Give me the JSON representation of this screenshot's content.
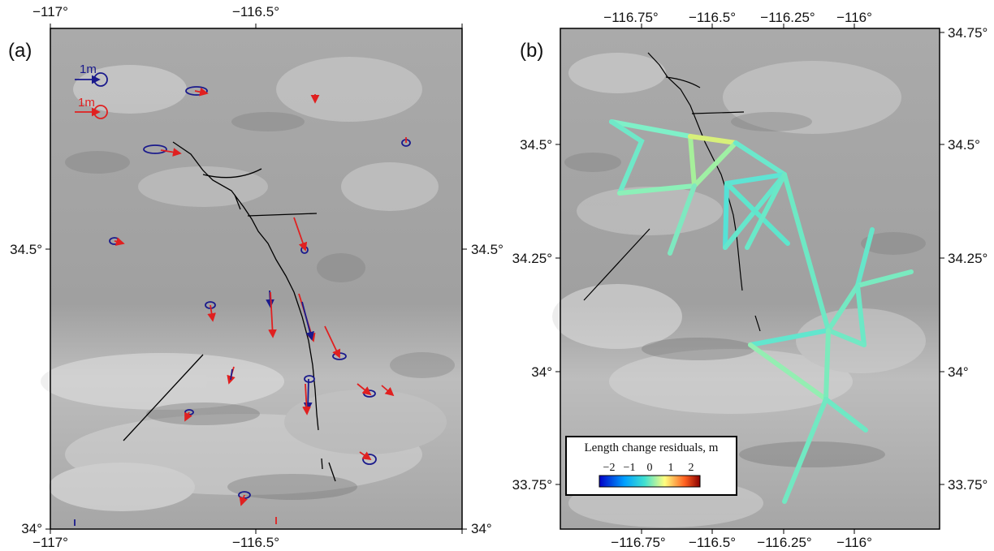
{
  "panels": [
    {
      "id": "a",
      "label": "(a)",
      "top_ticks": [
        "−117°",
        "−116.5°"
      ],
      "bottom_ticks": [
        "−117°",
        "−116.5°"
      ],
      "left_ticks": [
        "34.5°",
        "34°"
      ],
      "right_ticks": [
        "34.5°",
        "34°"
      ],
      "reference_arrows": [
        {
          "label": "1m",
          "color": "#1a1a8c"
        },
        {
          "label": "1m",
          "color": "#e02020"
        }
      ]
    },
    {
      "id": "b",
      "label": "(b)",
      "top_ticks": [
        "−116.75°",
        "−116.5°",
        "−116.25°",
        "−116°"
      ],
      "bottom_ticks": [
        "−116.75°",
        "−116.5°",
        "−116.25°",
        "−116°"
      ],
      "left_ticks": [
        "34.5°",
        "34.25°",
        "34°",
        "33.75°"
      ],
      "right_ticks": [
        "34.75°",
        "34.5°",
        "34.25°",
        "34°",
        "33.75°"
      ],
      "colorbar": {
        "title": "Length change residuals, m",
        "ticks": [
          "−2",
          "−1",
          "0",
          "1",
          "2"
        ],
        "colors": [
          "#0000c8",
          "#00a0ff",
          "#40e0d0",
          "#ffff80",
          "#ff6020",
          "#8a0000"
        ]
      }
    }
  ],
  "colors": {
    "observed_arrow": "#1a1a8c",
    "model_arrow": "#e02020",
    "fault_trace": "#000000",
    "baseline": "#5ee8c0",
    "terrain": "#a9a9a9"
  }
}
